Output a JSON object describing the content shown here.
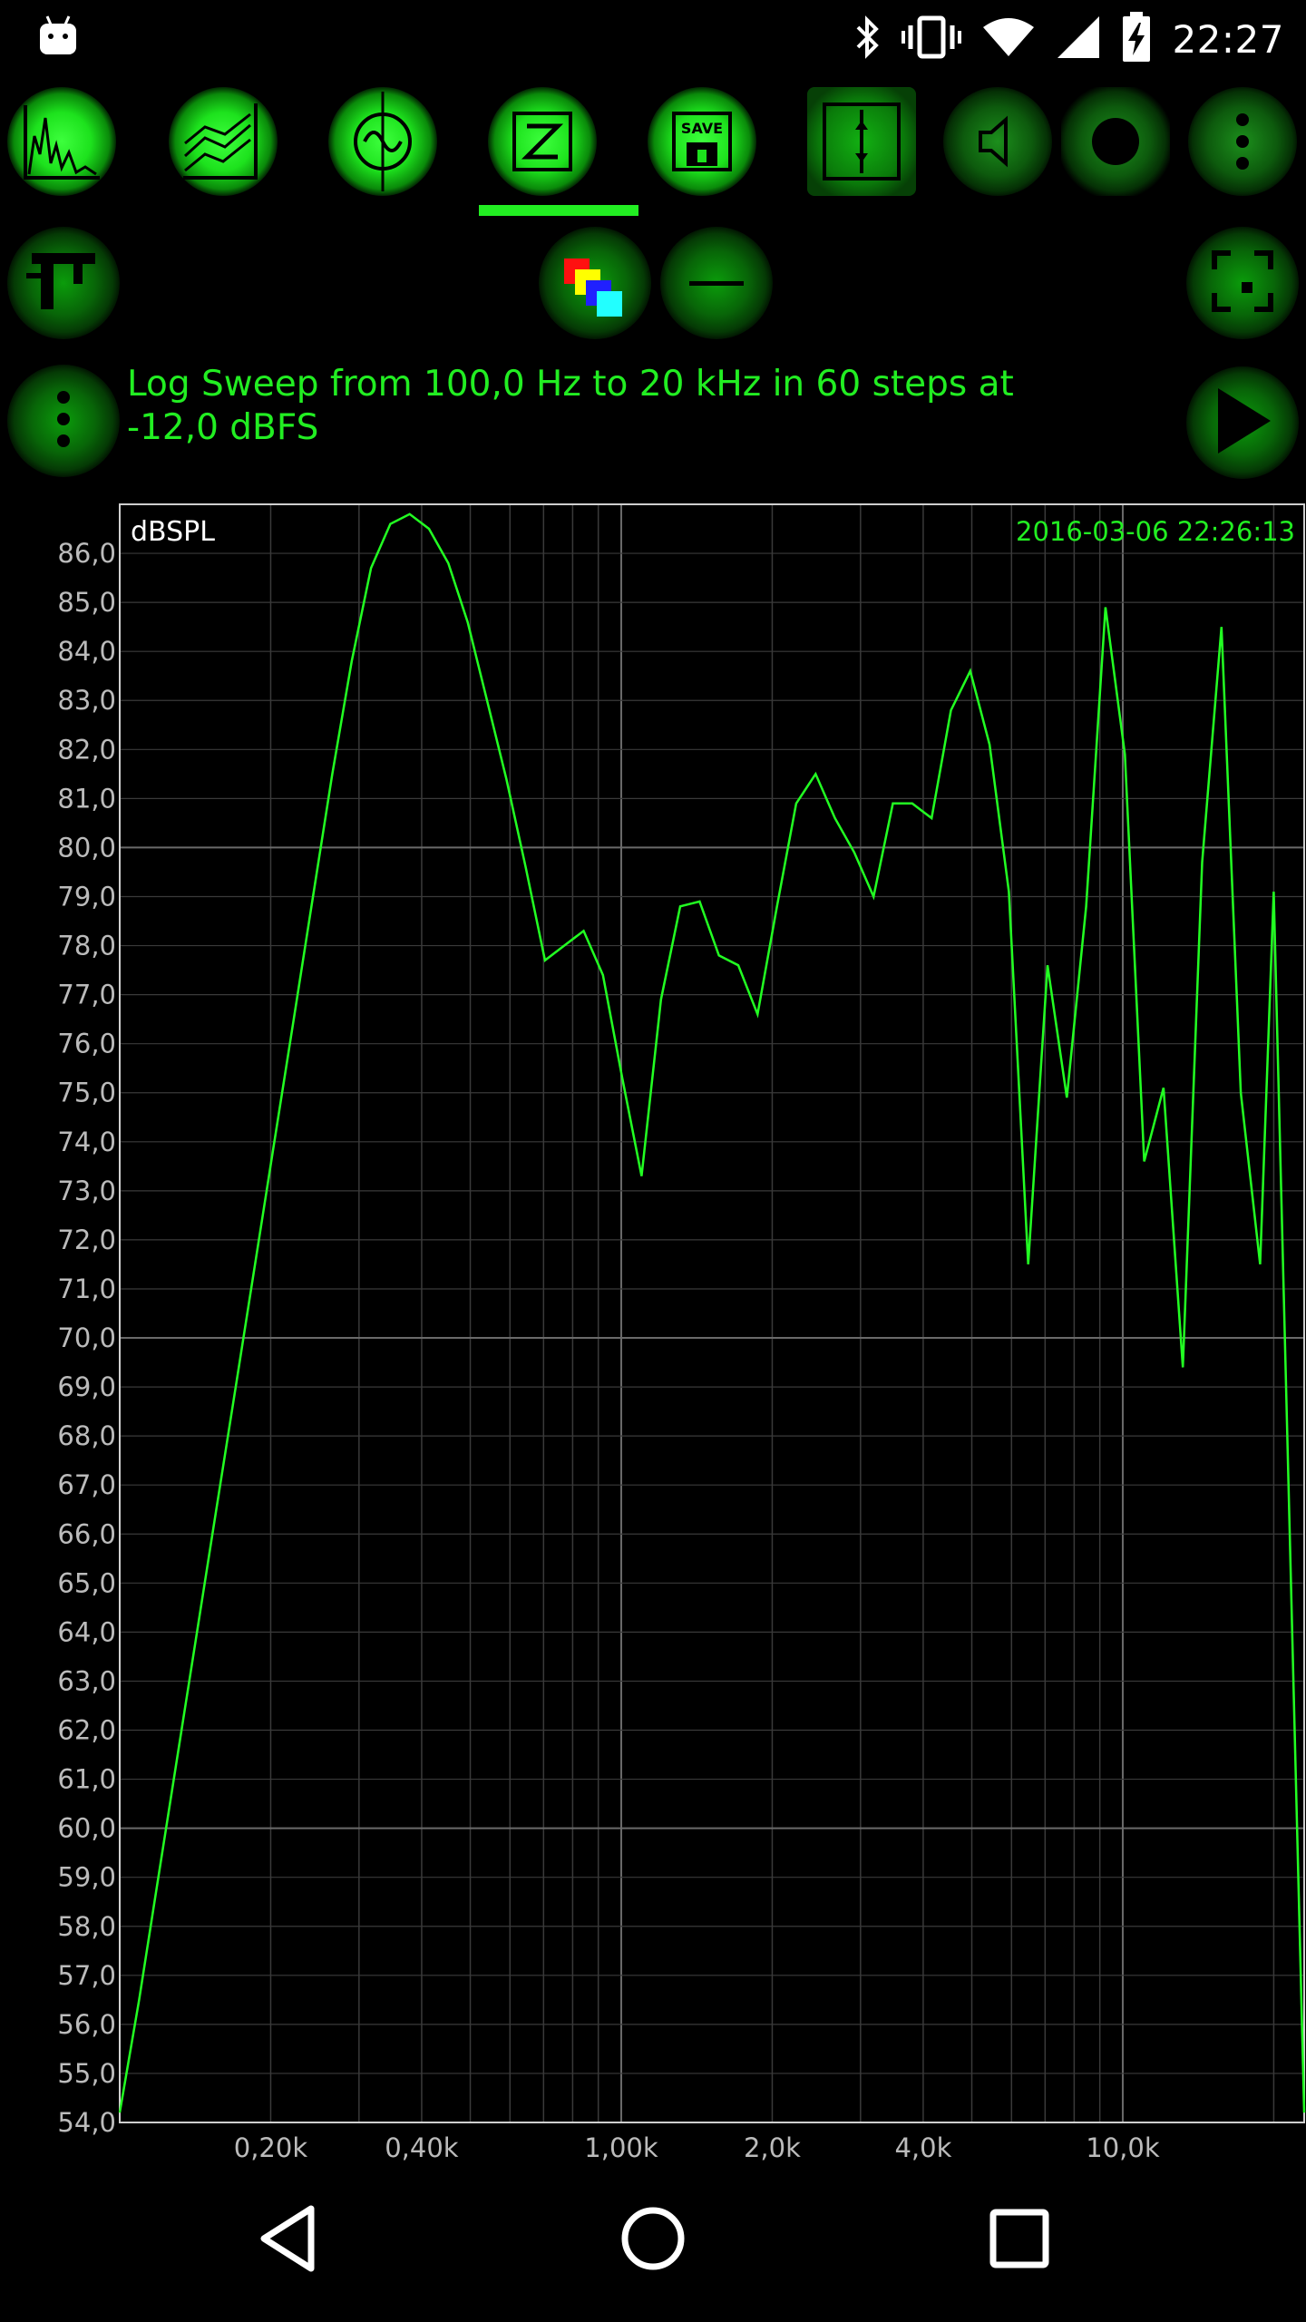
{
  "status_bar": {
    "time": "22:27",
    "icons": [
      "android-icon",
      "bluetooth-icon",
      "vibrate-icon",
      "wifi-icon",
      "signal-icon",
      "battery-charging-icon"
    ]
  },
  "toolbar": {
    "buttons": [
      {
        "name": "spectrum-button",
        "icon": "spectrum-icon"
      },
      {
        "name": "multi-chart-button",
        "icon": "multi-chart-icon"
      },
      {
        "name": "oscilloscope-button",
        "icon": "sine-wave-icon"
      },
      {
        "name": "impedance-button",
        "icon": "impedance-z-icon",
        "label": "Z",
        "selected": true
      },
      {
        "name": "save-button",
        "icon": "save-icon",
        "label": "SAVE"
      },
      {
        "name": "calibrate-button",
        "icon": "calibrate-icon"
      },
      {
        "name": "speaker-button",
        "icon": "speaker-icon"
      },
      {
        "name": "record-button",
        "icon": "record-icon"
      },
      {
        "name": "overflow-menu-button",
        "icon": "more-vert-icon"
      }
    ]
  },
  "row2": {
    "buttons": [
      "calipers-icon",
      "color-palette-icon",
      "minus-icon",
      "fullscreen-icon"
    ]
  },
  "info": {
    "text_line1": "Log Sweep from 100,0 Hz to 20 kHz in 60 steps at",
    "text_line2": "-12,0 dBFS",
    "menu_icon": "more-vert-icon",
    "play_icon": "play-icon"
  },
  "colors": {
    "accent": "#22ee22",
    "line": "#22ff22",
    "background": "#000000",
    "grid": "#3a3a3a",
    "grid_major": "#6a6a6a",
    "axis_text": "#bbbbbb"
  },
  "chart_data": {
    "type": "line",
    "ylabel": "dBSPL",
    "timestamp": "2016-03-06 22:26:13",
    "x_scale": "log",
    "xlim": [
      100,
      23000
    ],
    "ylim": [
      54,
      87
    ],
    "x_tick_labels": [
      {
        "value": 200,
        "label": "0,20k"
      },
      {
        "value": 400,
        "label": "0,40k"
      },
      {
        "value": 1000,
        "label": "1,00k"
      },
      {
        "value": 2000,
        "label": "2,0k"
      },
      {
        "value": 4000,
        "label": "4,0k"
      },
      {
        "value": 10000,
        "label": "10,0k"
      }
    ],
    "y_tick_labels": [
      "54,0",
      "55,0",
      "56,0",
      "57,0",
      "58,0",
      "59,0",
      "60,0",
      "61,0",
      "62,0",
      "63,0",
      "64,0",
      "65,0",
      "66,0",
      "67,0",
      "68,0",
      "69,0",
      "70,0",
      "71,0",
      "72,0",
      "73,0",
      "74,0",
      "75,0",
      "76,0",
      "77,0",
      "78,0",
      "79,0",
      "80,0",
      "81,0",
      "82,0",
      "83,0",
      "84,0",
      "85,0",
      "86,0"
    ],
    "grid": true,
    "series": [
      {
        "color": "#22ff22",
        "x": [
          100,
          109.3,
          119.4,
          130.5,
          142.6,
          155.8,
          170.3,
          186.1,
          203.4,
          222.3,
          242.9,
          265.4,
          290.1,
          317.0,
          346.4,
          378.6,
          413.7,
          452.1,
          494.0,
          539.9,
          590.0,
          644.7,
          704.6,
          769.9,
          841.4,
          919.4,
          1004.7,
          1098,
          1200,
          1311,
          1433,
          1566,
          1711,
          1870,
          2044,
          2233,
          2441,
          2667,
          2915,
          3185,
          3481,
          3804,
          4157,
          4543,
          4964,
          5425,
          5928,
          6478,
          7079,
          7736,
          8454,
          9238,
          10096,
          11032,
          12056,
          13175,
          14397,
          15733,
          17193,
          18788,
          20000
        ],
        "y": [
          54.2,
          56.5,
          59.0,
          61.5,
          64.0,
          66.5,
          69.0,
          71.5,
          74.0,
          76.5,
          79.0,
          81.5,
          83.8,
          85.7,
          86.6,
          86.8,
          86.5,
          85.8,
          84.6,
          83.0,
          81.4,
          79.6,
          77.7,
          78.0,
          78.3,
          77.4,
          75.3,
          73.3,
          76.9,
          78.8,
          78.9,
          77.8,
          77.6,
          76.6,
          78.8,
          80.9,
          81.5,
          80.6,
          79.9,
          79.0,
          80.9,
          80.9,
          80.6,
          82.8,
          83.6,
          82.1,
          79.1,
          71.5,
          77.6,
          74.9,
          78.8,
          84.9,
          81.9,
          73.6,
          75.1,
          69.4,
          79.7,
          84.5,
          75.0,
          71.5,
          79.1
        ]
      }
    ]
  },
  "nav_bar": {
    "icons": [
      "back-icon",
      "home-icon",
      "recents-icon"
    ]
  }
}
